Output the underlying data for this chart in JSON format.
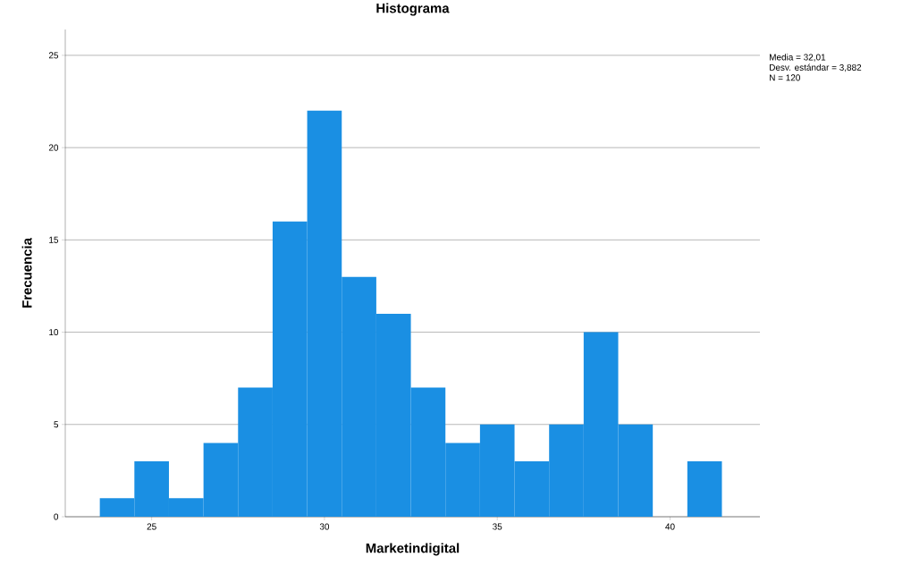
{
  "chart_data": {
    "type": "histogram",
    "title": "Histograma",
    "xlabel": "Marketindigital",
    "ylabel": "Frecuencia",
    "bins": [
      23.5,
      24.5,
      25.5,
      26.5,
      27.5,
      28.5,
      29.5,
      30.5,
      31.5,
      32.5,
      33.5,
      34.5,
      35.5,
      36.5,
      37.5,
      38.5,
      39.5,
      40.5,
      41.5
    ],
    "values": [
      1,
      3,
      1,
      4,
      7,
      16,
      22,
      13,
      11,
      7,
      4,
      5,
      3,
      5,
      10,
      5,
      0,
      3
    ],
    "color": "#1a8fe3",
    "xlim": [
      22.5,
      42.6
    ],
    "ylim": [
      0,
      26.4
    ],
    "xticks": [
      25,
      30,
      35,
      40
    ],
    "yticks": [
      0,
      5,
      10,
      15,
      20,
      25
    ],
    "grid": "y",
    "annotations": [
      "Media = 32,01",
      "Desv. estándar = 3,882",
      "N = 120"
    ]
  }
}
